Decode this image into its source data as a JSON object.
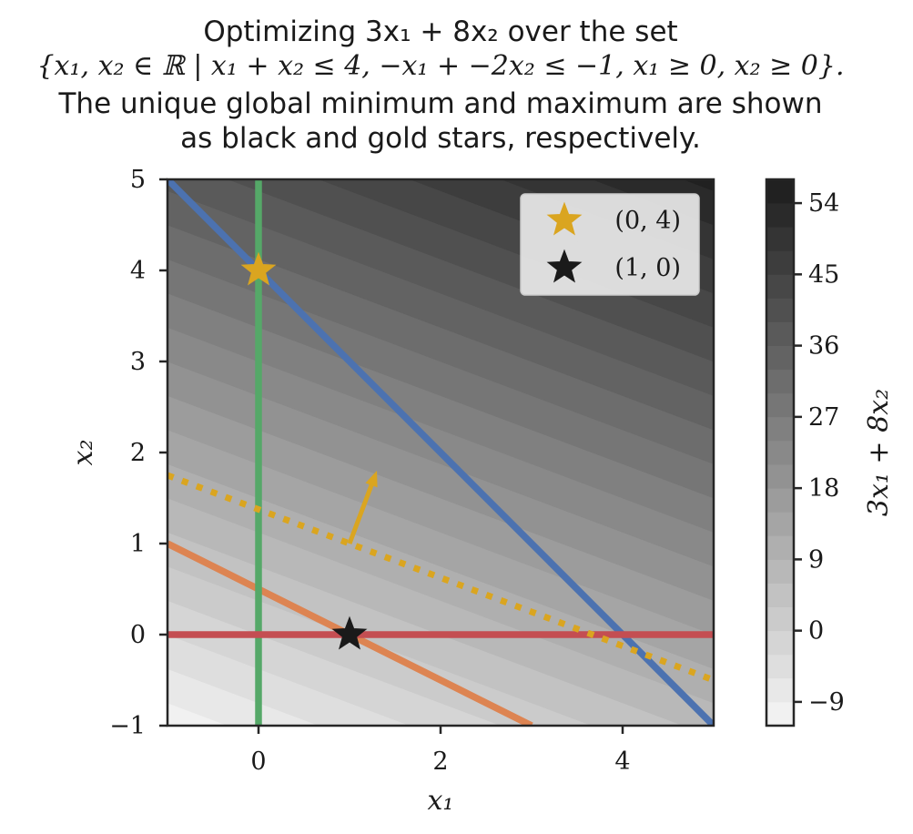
{
  "title": {
    "line1": "Optimizing 3x₁ + 8x₂ over the set",
    "line2": "{x₁, x₂ ∈ ℝ | x₁ + x₂ ≤ 4, −x₁ + −2x₂ ≤ −1, x₁ ≥ 0, x₂ ≥ 0}.",
    "line3": "The unique global minimum and maximum are shown",
    "line4": "as black and gold stars, respectively."
  },
  "chart_data": {
    "type": "contour",
    "objective": {
      "c1": 3,
      "c2": 8,
      "label": "3x₁ + 8x₂"
    },
    "xlabel": "x₁",
    "ylabel": "x₂",
    "xlim": [
      -1,
      5
    ],
    "ylim": [
      -1,
      5
    ],
    "xticks": [
      0,
      2,
      4
    ],
    "xtick_labels": [
      "0",
      "2",
      "4"
    ],
    "yticks": [
      -1,
      0,
      1,
      2,
      3,
      4,
      5
    ],
    "ytick_labels": [
      "−1",
      "0",
      "1",
      "2",
      "3",
      "4",
      "5"
    ],
    "colorbar": {
      "label": "3x₁ + 8x₂",
      "range": [
        -12,
        57
      ],
      "levels_step": 3,
      "ticks": [
        -9,
        0,
        9,
        18,
        27,
        36,
        45,
        54
      ],
      "tick_labels": [
        "−9",
        "0",
        "9",
        "18",
        "27",
        "36",
        "45",
        "54"
      ]
    },
    "constraints": [
      {
        "name": "x1 + x2 = 4",
        "a": 1,
        "b": 1,
        "c": 4,
        "color": "#4c72b0"
      },
      {
        "name": "x1 + 2x2 = 1",
        "a": 1,
        "b": 2,
        "c": 1,
        "color": "#dd8452"
      },
      {
        "name": "x1 = 0",
        "a": 1,
        "b": 0,
        "c": 0,
        "color": "#55a868"
      },
      {
        "name": "x2 = 0",
        "a": 0,
        "b": 1,
        "c": 0,
        "color": "#c44e52"
      }
    ],
    "objective_line": {
      "a": 3,
      "b": 8,
      "c": 11,
      "color": "#daa520",
      "style": "dotted"
    },
    "gradient_arrow": {
      "from": [
        1,
        1
      ],
      "to": [
        1.3,
        1.8
      ],
      "color": "#daa520"
    },
    "points": [
      {
        "label": "(0, 4)",
        "x": 0,
        "y": 4,
        "color": "#daa520",
        "kind": "maximum"
      },
      {
        "label": "(1, 0)",
        "x": 1,
        "y": 0,
        "color": "#1a1a1a",
        "kind": "minimum"
      }
    ],
    "legend_position": "top-right"
  }
}
